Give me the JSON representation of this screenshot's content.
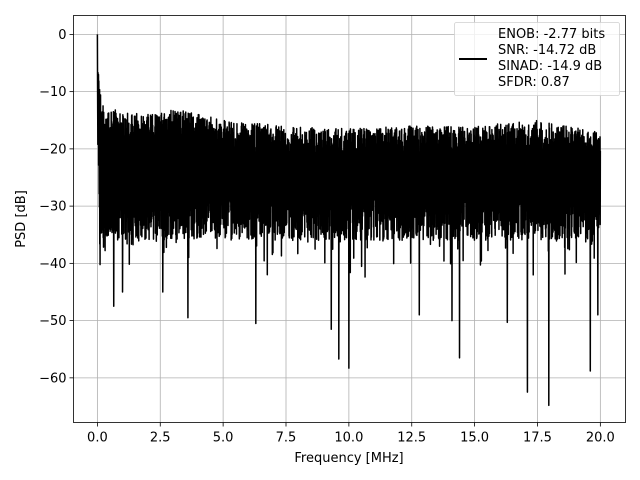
{
  "chart_data": {
    "type": "line",
    "title": "",
    "xlabel": "Frequency [MHz]",
    "ylabel": "PSD [dB]",
    "xlim": [
      -0.95,
      21.0
    ],
    "ylim": [
      -67.8,
      3.3
    ],
    "xticks": [
      0.0,
      2.5,
      5.0,
      7.5,
      10.0,
      12.5,
      15.0,
      17.5,
      20.0
    ],
    "xtick_labels": [
      "0.0",
      "2.5",
      "5.0",
      "7.5",
      "10.0",
      "12.5",
      "15.0",
      "17.5",
      "20.0"
    ],
    "yticks": [
      0,
      -10,
      -20,
      -30,
      -40,
      -50,
      -60
    ],
    "ytick_labels": [
      "0",
      "−10",
      "−20",
      "−30",
      "−40",
      "−50",
      "−60"
    ],
    "grid": true,
    "legend_position": "top-right",
    "legend_lines": [
      "ENOB: -2.77 bits",
      "SNR: -14.72 dB",
      "SINAD: -14.9 dB",
      "SFDR: 0.87"
    ],
    "series": [
      {
        "color": "#000000",
        "description": "noise-like PSD trace from 0 to 20 MHz",
        "x_range": [
          0.0,
          20.0
        ],
        "peak": {
          "x": 0.0,
          "y": 0
        },
        "upper_envelope": [
          [
            0.0,
            0
          ],
          [
            0.05,
            -8
          ],
          [
            0.3,
            -14
          ],
          [
            0.6,
            -13
          ],
          [
            1.0,
            -13.5
          ],
          [
            2.0,
            -14
          ],
          [
            3.2,
            -13
          ],
          [
            5.0,
            -15
          ],
          [
            7.5,
            -16
          ],
          [
            10.0,
            -16.5
          ],
          [
            12.5,
            -16
          ],
          [
            15.0,
            -16
          ],
          [
            17.5,
            -15
          ],
          [
            20.0,
            -17
          ]
        ],
        "typical_band": [
          -36,
          -16
        ],
        "deep_minima": [
          [
            0.65,
            -47.5
          ],
          [
            1.0,
            -45
          ],
          [
            2.6,
            -45
          ],
          [
            3.6,
            -49.5
          ],
          [
            6.3,
            -50.5
          ],
          [
            9.3,
            -51.5
          ],
          [
            9.6,
            -56.7
          ],
          [
            10.0,
            -58.3
          ],
          [
            12.8,
            -49
          ],
          [
            14.1,
            -50
          ],
          [
            14.4,
            -56.5
          ],
          [
            16.3,
            -50.3
          ],
          [
            17.1,
            -62.5
          ],
          [
            17.95,
            -64.8
          ],
          [
            19.6,
            -58.8
          ],
          [
            19.9,
            -49
          ]
        ]
      }
    ]
  }
}
